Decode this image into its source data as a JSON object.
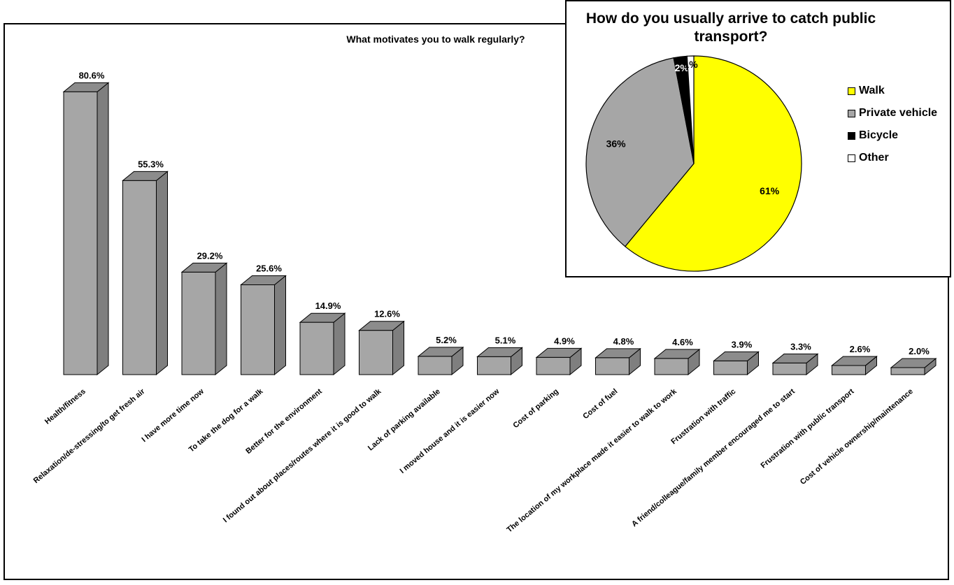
{
  "chart_data": [
    {
      "type": "bar",
      "title": "What motivates you to walk regularly?",
      "categories": [
        "Health/fitness",
        "Relaxation/de-stressing/to get fresh air",
        "I have more time now",
        "To take the dog for a walk",
        "Better for the environment",
        "I found out about places/routes where it is good to walk",
        "Lack of parking available",
        "I moved house and it is easier now",
        "Cost of parking",
        "Cost of fuel",
        "The location of my workplace made it easier to walk to work",
        "Frustration with traffic",
        "A friend/colleague/family member encouraged me to start",
        "Frustration with public transport",
        "Cost of vehicle ownership/maintenance"
      ],
      "values": [
        80.6,
        55.3,
        29.2,
        25.6,
        14.9,
        12.6,
        5.2,
        5.1,
        4.9,
        4.8,
        4.6,
        3.9,
        3.3,
        2.6,
        2.0
      ],
      "data_labels": [
        "80.6%",
        "55.3%",
        "29.2%",
        "25.6%",
        "14.9%",
        "12.6%",
        "5.2%",
        "5.1%",
        "4.9%",
        "4.8%",
        "4.6%",
        "3.9%",
        "3.3%",
        "2.6%",
        "2.0%"
      ],
      "style": "3d-column",
      "grid": false,
      "colors": {
        "bar_front": "#a6a6a6",
        "bar_side": "#7f7f7f",
        "bar_top": "#8c8c8c"
      }
    },
    {
      "type": "pie",
      "title": "How do you usually arrive to catch public transport?",
      "categories": [
        "Walk",
        "Private vehicle",
        "Bicycle",
        "Other"
      ],
      "values": [
        61,
        36,
        2,
        1
      ],
      "data_labels": [
        "61%",
        "36%",
        "2%",
        "1%"
      ],
      "colors": [
        "#ffff00",
        "#a6a6a6",
        "#000000",
        "#ffffff"
      ],
      "legend_position": "right"
    }
  ]
}
